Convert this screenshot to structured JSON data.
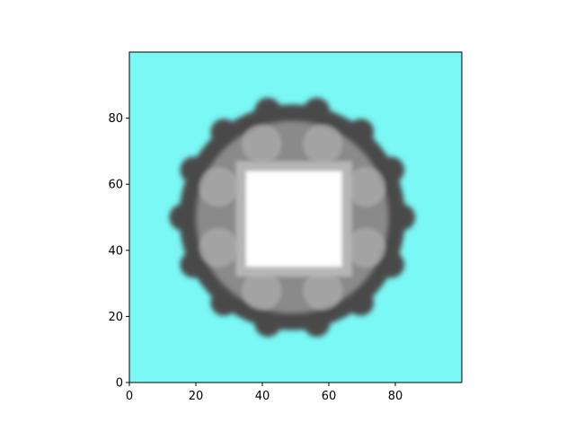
{
  "chart_data": {
    "type": "heatmap",
    "title": "",
    "xlabel": "",
    "ylabel": "",
    "xlim": [
      0,
      100
    ],
    "ylim": [
      0,
      100
    ],
    "origin": "lower",
    "grid": false,
    "xticks": [
      0,
      20,
      40,
      60,
      80
    ],
    "yticks": [
      0,
      20,
      40,
      60,
      80
    ],
    "xtick_labels": [
      "0",
      "20",
      "40",
      "60",
      "80"
    ],
    "ytick_labels": [
      "0",
      "20",
      "40",
      "60",
      "80"
    ],
    "background_color": "#7AF8F5",
    "colors": {
      "background": "#7AF8F5",
      "ring_dark": "#4a4a4a",
      "ring_mid": "#8a8a8a",
      "ring_light": "#b5b5b5",
      "center": "#ffffff"
    },
    "shape": {
      "description_values": "grayscale ring shape centered near (49, 50) in data units",
      "center": [
        49,
        50
      ],
      "outer_radius": 34,
      "bump_radius": 4,
      "inner_square": {
        "x0": 35,
        "x1": 64,
        "y0": 35,
        "y1": 64
      }
    }
  }
}
